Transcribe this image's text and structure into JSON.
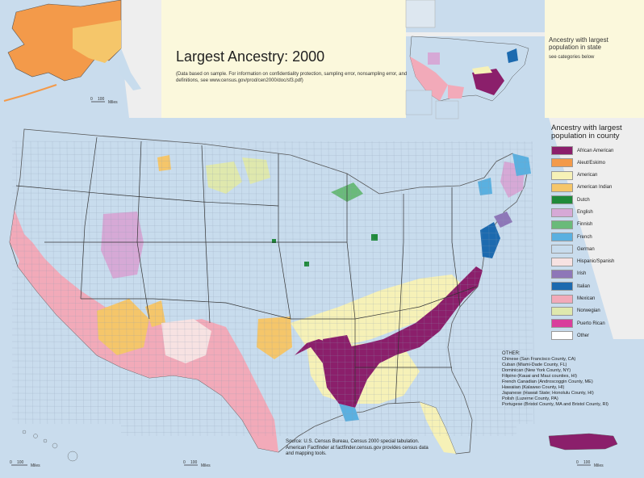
{
  "map": {
    "title": "Largest Ancestry: 2000",
    "note": "(Data based on sample. For information on confidentiality protection, sampling error, nonsampling error, and definitions, see www.census.gov/prod/cen2000/doc/sf3.pdf)",
    "state_inset_title": "Ancestry with largest population in state",
    "state_inset_note": "see categories below",
    "legend_title": "Ancestry with largest population in county",
    "source": "Source: U.S. Census Bureau, Census 2000 special tabulation. American Factfinder at factfinder.census.gov provides census data and mapping tools.",
    "scale_label": "Miles",
    "scale_zero": "0",
    "scale_hundred": "100"
  },
  "legend": [
    {
      "label": "African American",
      "color": "#8b1f6b"
    },
    {
      "label": "Aleut/Eskimo",
      "color": "#f39a4a"
    },
    {
      "label": "American",
      "color": "#f6f1b7"
    },
    {
      "label": "American Indian",
      "color": "#f5c66a"
    },
    {
      "label": "Dutch",
      "color": "#1f8a3a"
    },
    {
      "label": "English",
      "color": "#d6a9d6"
    },
    {
      "label": "Finnish",
      "color": "#6aba7a"
    },
    {
      "label": "French",
      "color": "#5ab0e0"
    },
    {
      "label": "German",
      "color": "#c8dced"
    },
    {
      "label": "Hispanic/Spanish",
      "color": "#f7e2e2"
    },
    {
      "label": "Irish",
      "color": "#8e77b8"
    },
    {
      "label": "Italian",
      "color": "#1c6aaf"
    },
    {
      "label": "Mexican",
      "color": "#f2aab9"
    },
    {
      "label": "Norwegian",
      "color": "#dfe8ad"
    },
    {
      "label": "Puerto Rican",
      "color": "#d93e9c"
    },
    {
      "label": "Other",
      "color": "#ffffff"
    }
  ],
  "other": {
    "title": "OTHER:",
    "items": [
      "Chinese (San Francisco County, CA)",
      "Cuban (Miami-Dade County, FL)",
      "Dominican (New York County, NY)",
      "Filipino (Kauai and Maui counties, HI)",
      "French Canadian (Androscoggin County, ME)",
      "Hawaiian (Kalawao County, HI)",
      "Japanese (Hawaii State; Honolulu County, HI)",
      "Polish (Luzerne County, PA)",
      "Portugese (Bristol County, MA and Bristol County, RI)"
    ]
  },
  "colors": {
    "page_bg": "#fbf8dc",
    "water": "#b8d0e8",
    "outside_land": "#eeeeee",
    "german": "#c8dced",
    "mexican": "#f2aab9",
    "african_american": "#8b1f6b",
    "american": "#f6f1b7",
    "american_indian": "#f5c66a",
    "aleut": "#f39a4a"
  }
}
